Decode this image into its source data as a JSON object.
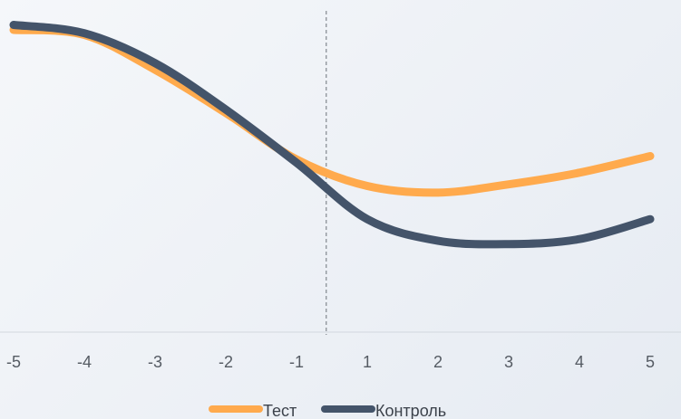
{
  "chart_data": {
    "type": "line",
    "title": "",
    "xlabel": "",
    "ylabel": "",
    "categories": [
      "-5",
      "-4",
      "-3",
      "-2",
      "-1",
      "1",
      "2",
      "3",
      "4",
      "5"
    ],
    "ylim": [
      0,
      100
    ],
    "grid": false,
    "legend": "bottom",
    "divider_after_category": "-1",
    "series": [
      {
        "name": "Тест",
        "color": "#ffaa4d",
        "values": [
          91,
          89.5,
          79,
          66,
          52,
          44,
          42,
          44.5,
          48,
          53
        ]
      },
      {
        "name": "Контроль",
        "color": "#44546a",
        "values": [
          92.5,
          90,
          81,
          67,
          51,
          34,
          27.5,
          26.5,
          28,
          34
        ]
      }
    ]
  }
}
